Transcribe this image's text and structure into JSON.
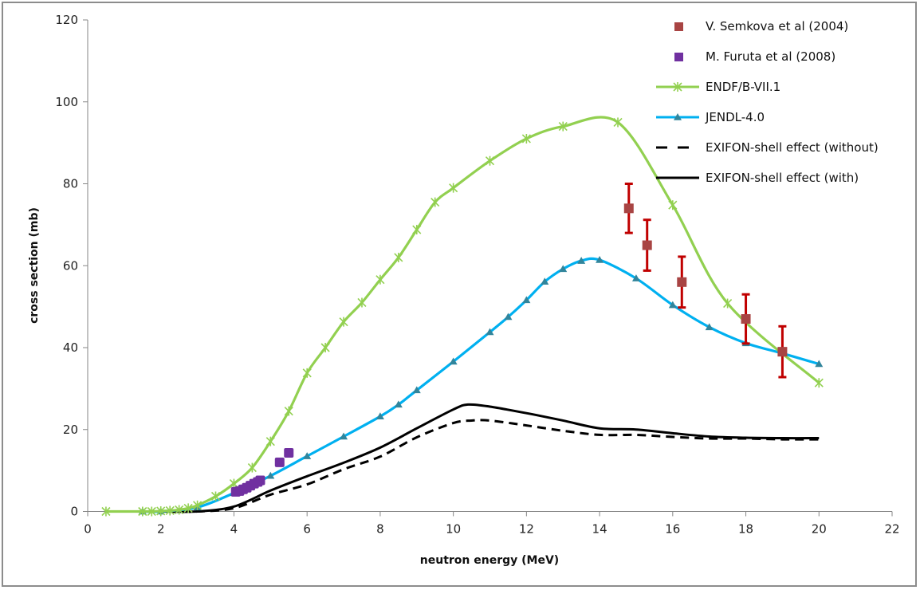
{
  "chart_data": {
    "type": "line",
    "title": "",
    "xlabel": "neutron energy (MeV)",
    "ylabel": "cross section (mb)",
    "xlim": [
      0,
      22
    ],
    "ylim": [
      0,
      120
    ],
    "xticks": [
      0,
      2,
      4,
      6,
      8,
      10,
      12,
      14,
      16,
      18,
      20,
      22
    ],
    "yticks": [
      0,
      20,
      40,
      60,
      80,
      100,
      120
    ],
    "grid": false,
    "legend_position": "top-right",
    "series": [
      {
        "name": "V. Semkova et al (2004)",
        "kind": "scatter-errorbar",
        "color": "#a84443",
        "error_color": "#c00000",
        "x": [
          14.8,
          15.3,
          16.25,
          18.0,
          19.0
        ],
        "y": [
          74.0,
          65.0,
          56.0,
          47.0,
          39.0
        ],
        "yerr": [
          6.0,
          6.2,
          6.2,
          6.0,
          6.2
        ]
      },
      {
        "name": "M. Furuta et al (2008)",
        "kind": "scatter",
        "color": "#7030a0",
        "x": [
          4.05,
          4.15,
          4.25,
          4.35,
          4.45,
          4.55,
          4.65,
          4.72,
          5.25,
          5.5
        ],
        "y": [
          4.8,
          5.0,
          5.4,
          5.8,
          6.3,
          6.8,
          7.2,
          7.6,
          12.0,
          14.3
        ]
      },
      {
        "name": "ENDF/B-VII.1",
        "kind": "line-marker",
        "marker": "asterisk",
        "color": "#92d050",
        "x": [
          0.5,
          1.5,
          1.75,
          2.0,
          2.25,
          2.5,
          2.75,
          3.0,
          3.5,
          4.0,
          4.5,
          5.0,
          5.5,
          6.0,
          6.5,
          7.0,
          7.5,
          8.0,
          8.5,
          9.0,
          9.5,
          10.0,
          11.0,
          12.0,
          13.0,
          14.5,
          16.0,
          17.5,
          20.0
        ],
        "y": [
          0.0,
          0.0,
          0.0,
          0.1,
          0.2,
          0.4,
          0.8,
          1.5,
          3.7,
          6.8,
          10.7,
          17.1,
          24.5,
          33.8,
          40.0,
          46.3,
          51.0,
          56.6,
          62.0,
          68.8,
          75.5,
          79.0,
          85.6,
          91.0,
          94.0,
          95.0,
          74.8,
          50.8,
          31.4
        ]
      },
      {
        "name": "JENDL-4.0",
        "kind": "line-marker",
        "marker": "triangle",
        "color": "#00b0f0",
        "marker_color": "#31859c",
        "x": [
          1.5,
          2.0,
          3.0,
          4.0,
          5.0,
          6.0,
          7.0,
          8.0,
          8.5,
          9.0,
          10.0,
          11.0,
          11.5,
          12.0,
          12.5,
          13.0,
          13.5,
          14.0,
          15.0,
          16.0,
          17.0,
          18.0,
          19.0,
          20.0
        ],
        "y": [
          0.0,
          0.0,
          1.0,
          4.5,
          8.7,
          13.5,
          18.3,
          23.2,
          26.1,
          29.6,
          36.6,
          43.8,
          47.5,
          51.6,
          56.1,
          59.2,
          61.2,
          61.4,
          56.9,
          50.4,
          45.0,
          41.1,
          38.6,
          36.0
        ]
      },
      {
        "name": "EXIFON-shell effect (without)",
        "kind": "line",
        "dash": true,
        "color": "#000000",
        "x": [
          1.0,
          2.0,
          3.0,
          4.0,
          5.0,
          6.0,
          7.0,
          8.0,
          9.0,
          10.0,
          10.5,
          11.0,
          12.0,
          13.0,
          14.0,
          15.0,
          16.0,
          17.0,
          18.0,
          19.0,
          20.0
        ],
        "y": [
          0.0,
          0.0,
          0.0,
          0.8,
          4.1,
          6.6,
          10.3,
          13.4,
          18.1,
          21.6,
          22.2,
          22.2,
          21.0,
          19.7,
          18.7,
          18.7,
          18.2,
          17.8,
          17.8,
          17.6,
          17.6
        ]
      },
      {
        "name": "EXIFON-shell effect (with)",
        "kind": "line",
        "dash": false,
        "color": "#000000",
        "x": [
          1.0,
          2.0,
          3.0,
          4.0,
          5.0,
          6.0,
          7.0,
          8.0,
          9.0,
          10.0,
          10.4,
          11.0,
          12.0,
          13.0,
          14.0,
          15.0,
          16.0,
          17.0,
          18.0,
          19.0,
          20.0
        ],
        "y": [
          0.0,
          0.0,
          0.0,
          1.2,
          5.1,
          8.6,
          11.9,
          15.6,
          20.3,
          24.9,
          26.1,
          25.6,
          24.0,
          22.2,
          20.3,
          20.0,
          19.1,
          18.3,
          18.0,
          17.9,
          17.9
        ]
      }
    ]
  }
}
